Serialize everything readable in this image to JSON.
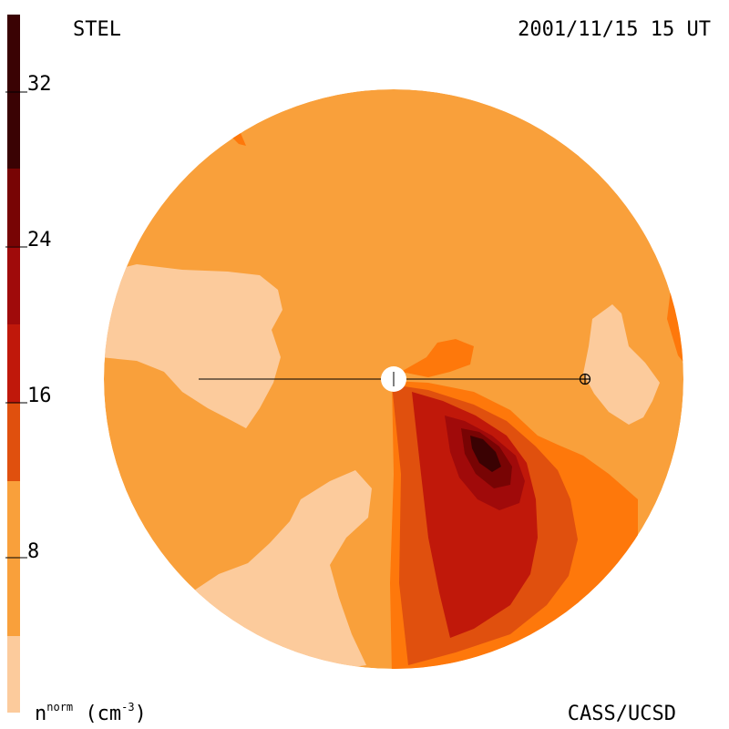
{
  "header": {
    "left_label": "STEL",
    "right_label": "2001/11/15 15 UT"
  },
  "footer": {
    "right_label": "CASS/UCSD",
    "unit_base": "n",
    "unit_super": "norm",
    "unit_tail": " (cm",
    "unit_exp": "-3",
    "unit_close": ")"
  },
  "colorbar": {
    "ticks": [
      "32",
      "24",
      "16",
      "8"
    ],
    "levels": [
      {
        "min": 0,
        "max": 4,
        "color": "#fccb9c"
      },
      {
        "min": 4,
        "max": 8,
        "color": "#f9a03b"
      },
      {
        "min": 8,
        "max": 12,
        "color": "#fe780b"
      },
      {
        "min": 12,
        "max": 16,
        "color": "#e0500e"
      },
      {
        "min": 16,
        "max": 20,
        "color": "#c0180a"
      },
      {
        "min": 20,
        "max": 24,
        "color": "#a00a0a"
      },
      {
        "min": 24,
        "max": 28,
        "color": "#780404"
      },
      {
        "min": 28,
        "max": 36,
        "color": "#3a0203"
      }
    ]
  }
}
